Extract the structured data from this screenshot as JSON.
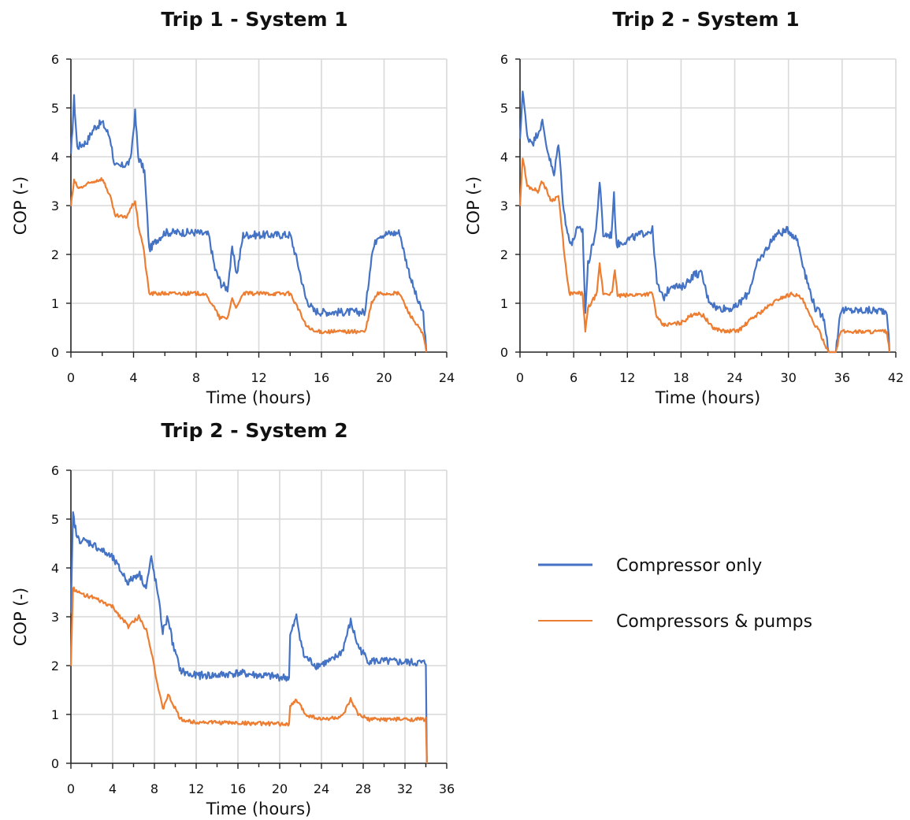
{
  "chart_data": [
    {
      "type": "line",
      "title": "Trip 1 - System 1",
      "xlabel": "Time (hours)",
      "ylabel": "COP (-)",
      "xlim": [
        0,
        24
      ],
      "ylim": [
        0,
        6
      ],
      "xticks": [
        "0",
        "4",
        "8",
        "12",
        "16",
        "20",
        "24"
      ],
      "yticks": [
        "0",
        "1",
        "2",
        "3",
        "4",
        "5",
        "6"
      ],
      "grid": true,
      "series": [
        {
          "name": "Compressor only",
          "color": "#4472C4",
          "points": [
            [
              0,
              4.0
            ],
            [
              0.2,
              5.2
            ],
            [
              0.4,
              4.2
            ],
            [
              1.0,
              4.3
            ],
            [
              1.5,
              4.6
            ],
            [
              2.0,
              4.7
            ],
            [
              2.5,
              4.4
            ],
            [
              2.8,
              3.8
            ],
            [
              3.2,
              3.8
            ],
            [
              3.8,
              3.9
            ],
            [
              4.1,
              4.9
            ],
            [
              4.3,
              4.0
            ],
            [
              4.7,
              3.7
            ],
            [
              5.0,
              2.1
            ],
            [
              5.5,
              2.3
            ],
            [
              6.0,
              2.45
            ],
            [
              8.0,
              2.45
            ],
            [
              8.8,
              2.4
            ],
            [
              9.2,
              1.7
            ],
            [
              9.6,
              1.4
            ],
            [
              10.0,
              1.3
            ],
            [
              10.3,
              2.1
            ],
            [
              10.6,
              1.6
            ],
            [
              11.0,
              2.4
            ],
            [
              14.0,
              2.4
            ],
            [
              14.5,
              1.8
            ],
            [
              15.0,
              1.1
            ],
            [
              15.5,
              0.85
            ],
            [
              16.0,
              0.82
            ],
            [
              18.8,
              0.82
            ],
            [
              19.2,
              2.0
            ],
            [
              19.6,
              2.4
            ],
            [
              21.0,
              2.45
            ],
            [
              21.3,
              2.0
            ],
            [
              21.8,
              1.4
            ],
            [
              22.2,
              1.0
            ],
            [
              22.5,
              0.8
            ],
            [
              22.7,
              0.0
            ]
          ]
        },
        {
          "name": "Compressors & pumps",
          "color": "#ED7D31",
          "points": [
            [
              0,
              3.0
            ],
            [
              0.2,
              3.5
            ],
            [
              0.5,
              3.35
            ],
            [
              1.5,
              3.5
            ],
            [
              2.0,
              3.55
            ],
            [
              2.5,
              3.2
            ],
            [
              2.8,
              2.8
            ],
            [
              3.5,
              2.75
            ],
            [
              4.1,
              3.1
            ],
            [
              4.3,
              2.6
            ],
            [
              4.6,
              2.2
            ],
            [
              5.0,
              1.2
            ],
            [
              5.5,
              1.2
            ],
            [
              8.5,
              1.2
            ],
            [
              9.0,
              1.0
            ],
            [
              9.5,
              0.7
            ],
            [
              10.0,
              0.7
            ],
            [
              10.3,
              1.1
            ],
            [
              10.6,
              0.9
            ],
            [
              11.0,
              1.2
            ],
            [
              14.0,
              1.2
            ],
            [
              14.5,
              0.9
            ],
            [
              15.0,
              0.55
            ],
            [
              15.5,
              0.42
            ],
            [
              18.8,
              0.42
            ],
            [
              19.2,
              1.0
            ],
            [
              19.6,
              1.2
            ],
            [
              21.0,
              1.2
            ],
            [
              21.5,
              0.85
            ],
            [
              22.2,
              0.5
            ],
            [
              22.5,
              0.35
            ],
            [
              22.7,
              0.0
            ]
          ]
        }
      ]
    },
    {
      "type": "line",
      "title": "Trip 2 - System 1",
      "xlabel": "Time (hours)",
      "ylabel": "COP (-)",
      "xlim": [
        0,
        42
      ],
      "ylim": [
        0,
        6
      ],
      "xticks": [
        "0",
        "6",
        "12",
        "18",
        "24",
        "30",
        "36",
        "42"
      ],
      "yticks": [
        "0",
        "1",
        "2",
        "3",
        "4",
        "5",
        "6"
      ],
      "grid": true,
      "series": [
        {
          "name": "Compressor only",
          "color": "#4472C4",
          "points": [
            [
              0,
              4.3
            ],
            [
              0.3,
              5.4
            ],
            [
              0.8,
              4.4
            ],
            [
              1.5,
              4.3
            ],
            [
              2.5,
              4.7
            ],
            [
              3.0,
              4.2
            ],
            [
              3.8,
              3.6
            ],
            [
              4.3,
              4.3
            ],
            [
              4.8,
              3.1
            ],
            [
              5.2,
              2.5
            ],
            [
              5.8,
              2.2
            ],
            [
              6.3,
              2.5
            ],
            [
              7.0,
              2.5
            ],
            [
              7.3,
              0.8
            ],
            [
              7.6,
              1.8
            ],
            [
              8.5,
              2.5
            ],
            [
              8.9,
              3.5
            ],
            [
              9.3,
              2.4
            ],
            [
              10.2,
              2.4
            ],
            [
              10.5,
              3.2
            ],
            [
              10.8,
              2.2
            ],
            [
              12.0,
              2.3
            ],
            [
              14.0,
              2.45
            ],
            [
              14.8,
              2.5
            ],
            [
              15.3,
              1.4
            ],
            [
              16.0,
              1.1
            ],
            [
              17.0,
              1.4
            ],
            [
              18.0,
              1.3
            ],
            [
              19.5,
              1.6
            ],
            [
              20.3,
              1.6
            ],
            [
              21.0,
              1.1
            ],
            [
              22.0,
              0.9
            ],
            [
              24.0,
              0.9
            ],
            [
              25.5,
              1.2
            ],
            [
              26.5,
              1.8
            ],
            [
              27.5,
              2.1
            ],
            [
              28.5,
              2.4
            ],
            [
              30.0,
              2.5
            ],
            [
              31.0,
              2.3
            ],
            [
              32.0,
              1.5
            ],
            [
              33.0,
              0.9
            ],
            [
              34.0,
              0.7
            ],
            [
              34.5,
              0.0
            ],
            [
              35.3,
              0.0
            ],
            [
              35.8,
              0.85
            ],
            [
              41.0,
              0.85
            ],
            [
              41.3,
              0.0
            ]
          ]
        },
        {
          "name": "Compressors & pumps",
          "color": "#ED7D31",
          "points": [
            [
              0,
              3.0
            ],
            [
              0.3,
              4.0
            ],
            [
              0.8,
              3.4
            ],
            [
              2.0,
              3.3
            ],
            [
              2.5,
              3.5
            ],
            [
              3.5,
              3.1
            ],
            [
              4.3,
              3.2
            ],
            [
              4.8,
              2.3
            ],
            [
              5.2,
              1.6
            ],
            [
              5.5,
              1.2
            ],
            [
              7.0,
              1.2
            ],
            [
              7.3,
              0.4
            ],
            [
              7.6,
              0.9
            ],
            [
              8.6,
              1.2
            ],
            [
              8.9,
              1.8
            ],
            [
              9.3,
              1.2
            ],
            [
              10.3,
              1.2
            ],
            [
              10.6,
              1.7
            ],
            [
              10.9,
              1.15
            ],
            [
              14.8,
              1.2
            ],
            [
              15.3,
              0.7
            ],
            [
              16.0,
              0.55
            ],
            [
              18.0,
              0.6
            ],
            [
              19.5,
              0.8
            ],
            [
              20.5,
              0.75
            ],
            [
              21.5,
              0.5
            ],
            [
              23.0,
              0.42
            ],
            [
              24.5,
              0.45
            ],
            [
              26.0,
              0.7
            ],
            [
              27.5,
              0.9
            ],
            [
              29.0,
              1.1
            ],
            [
              30.5,
              1.2
            ],
            [
              31.5,
              1.1
            ],
            [
              32.5,
              0.7
            ],
            [
              33.5,
              0.4
            ],
            [
              34.5,
              0.0
            ],
            [
              35.3,
              0.0
            ],
            [
              35.8,
              0.42
            ],
            [
              41.0,
              0.42
            ],
            [
              41.3,
              0.0
            ]
          ]
        }
      ]
    },
    {
      "type": "line",
      "title": "Trip 2 - System 2",
      "xlabel": "Time (hours)",
      "ylabel": "COP (-)",
      "xlim": [
        0,
        36
      ],
      "ylim": [
        0,
        6
      ],
      "xticks": [
        "0",
        "4",
        "8",
        "12",
        "16",
        "20",
        "24",
        "28",
        "32",
        "36"
      ],
      "yticks": [
        "0",
        "1",
        "2",
        "3",
        "4",
        "5",
        "6"
      ],
      "grid": true,
      "series": [
        {
          "name": "Compressor only",
          "color": "#4472C4",
          "points": [
            [
              0,
              3.0
            ],
            [
              0.2,
              5.1
            ],
            [
              0.6,
              4.6
            ],
            [
              2.0,
              4.5
            ],
            [
              4.0,
              4.2
            ],
            [
              5.5,
              3.7
            ],
            [
              6.5,
              3.9
            ],
            [
              7.2,
              3.6
            ],
            [
              7.7,
              4.2
            ],
            [
              8.3,
              3.5
            ],
            [
              8.8,
              2.7
            ],
            [
              9.3,
              3.0
            ],
            [
              9.8,
              2.4
            ],
            [
              10.5,
              1.9
            ],
            [
              11.5,
              1.8
            ],
            [
              14.0,
              1.8
            ],
            [
              16.0,
              1.85
            ],
            [
              18.0,
              1.8
            ],
            [
              20.9,
              1.75
            ],
            [
              21.0,
              2.6
            ],
            [
              21.6,
              3.0
            ],
            [
              22.3,
              2.2
            ],
            [
              23.5,
              2.0
            ],
            [
              25.0,
              2.1
            ],
            [
              26.0,
              2.3
            ],
            [
              26.8,
              2.9
            ],
            [
              27.5,
              2.4
            ],
            [
              28.5,
              2.1
            ],
            [
              34.0,
              2.05
            ],
            [
              34.1,
              0.0
            ]
          ]
        },
        {
          "name": "Compressors & pumps",
          "color": "#ED7D31",
          "points": [
            [
              0,
              2.0
            ],
            [
              0.2,
              3.6
            ],
            [
              0.6,
              3.5
            ],
            [
              2.0,
              3.4
            ],
            [
              4.0,
              3.2
            ],
            [
              5.5,
              2.8
            ],
            [
              6.5,
              3.0
            ],
            [
              7.3,
              2.7
            ],
            [
              7.8,
              2.2
            ],
            [
              8.3,
              1.6
            ],
            [
              8.8,
              1.1
            ],
            [
              9.3,
              1.4
            ],
            [
              9.8,
              1.2
            ],
            [
              10.5,
              0.9
            ],
            [
              11.5,
              0.85
            ],
            [
              20.9,
              0.8
            ],
            [
              21.0,
              1.15
            ],
            [
              21.6,
              1.3
            ],
            [
              22.5,
              1.0
            ],
            [
              24.0,
              0.9
            ],
            [
              26.0,
              0.95
            ],
            [
              26.8,
              1.3
            ],
            [
              27.5,
              1.0
            ],
            [
              28.5,
              0.9
            ],
            [
              34.0,
              0.9
            ],
            [
              34.1,
              0.0
            ]
          ]
        }
      ]
    }
  ],
  "legend": {
    "items": [
      {
        "label": "Compressor only",
        "color": "#4472C4"
      },
      {
        "label": "Compressors & pumps",
        "color": "#ED7D31"
      }
    ]
  }
}
